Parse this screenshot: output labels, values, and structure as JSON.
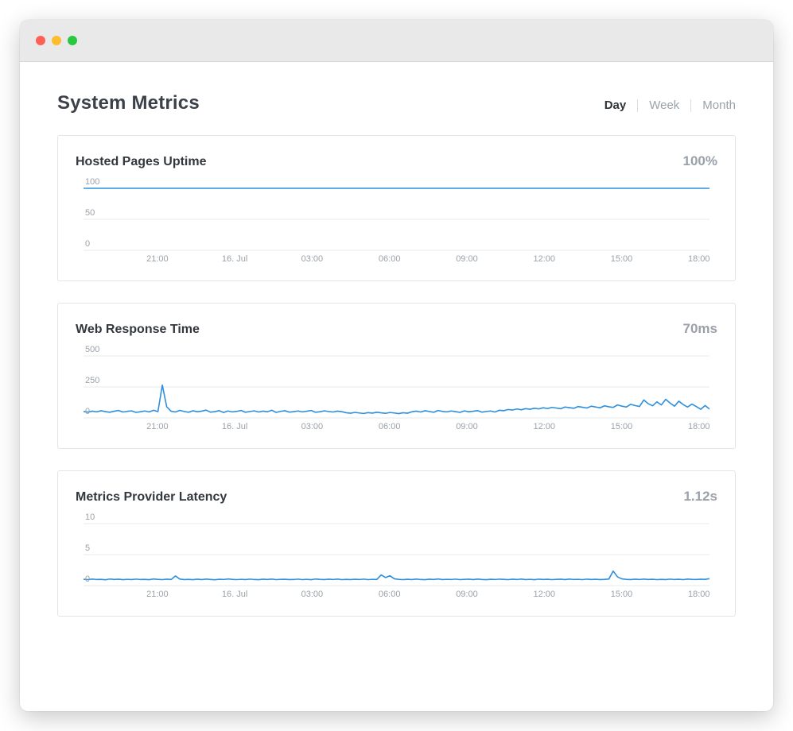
{
  "colors": {
    "line_blue": "#2d8fdd",
    "traffic_red": "#ff5f57",
    "traffic_yellow": "#febc2e",
    "traffic_green": "#28c841"
  },
  "header": {
    "title": "System Metrics",
    "tabs": [
      "Day",
      "Week",
      "Month"
    ],
    "active_tab": "Day"
  },
  "chart_data": [
    {
      "type": "line",
      "title": "Hosted Pages Uptime",
      "current_value": "100%",
      "ylim": [
        0,
        100
      ],
      "yticks": [
        100,
        50,
        0
      ],
      "grid": true,
      "legend": "none",
      "x_labels": [
        "21:00",
        "16. Jul",
        "03:00",
        "06:00",
        "09:00",
        "12:00",
        "15:00",
        "18:00"
      ],
      "x_positions_pct": [
        11.8,
        24.16,
        36.52,
        48.88,
        61.24,
        73.6,
        85.96,
        98.32
      ],
      "values": [
        100,
        100,
        100,
        100,
        100,
        100,
        100,
        100,
        100,
        100,
        100,
        100,
        100
      ]
    },
    {
      "type": "line",
      "title": "Web Response Time",
      "current_value": "70ms",
      "ylim": [
        0,
        500
      ],
      "yticks": [
        500,
        250,
        0
      ],
      "grid": true,
      "legend": "none",
      "x_labels": [
        "21:00",
        "16. Jul",
        "03:00",
        "06:00",
        "09:00",
        "12:00",
        "15:00",
        "18:00"
      ],
      "x_positions_pct": [
        11.8,
        24.16,
        36.52,
        48.88,
        61.24,
        73.6,
        85.96,
        98.32
      ],
      "values": [
        52,
        47,
        55,
        49,
        58,
        51,
        46,
        54,
        60,
        48,
        53,
        57,
        45,
        50,
        56,
        49,
        62,
        51,
        265,
        90,
        54,
        48,
        61,
        52,
        46,
        58,
        50,
        55,
        63,
        47,
        51,
        59,
        44,
        56,
        49,
        53,
        60,
        46,
        52,
        57,
        48,
        55,
        50,
        62,
        45,
        53,
        58,
        47,
        51,
        56,
        49,
        54,
        60,
        46,
        50,
        57,
        52,
        48,
        55,
        51,
        42,
        38,
        45,
        40,
        36,
        43,
        39,
        46,
        41,
        37,
        44,
        40,
        35,
        42,
        38,
        50,
        55,
        48,
        58,
        52,
        46,
        60,
        53,
        49,
        56,
        51,
        45,
        57,
        50,
        54,
        59,
        47,
        52,
        56,
        48,
        62,
        58,
        68,
        64,
        72,
        66,
        75,
        70,
        78,
        73,
        82,
        76,
        85,
        80,
        74,
        88,
        83,
        78,
        92,
        86,
        80,
        95,
        88,
        82,
        98,
        90,
        85,
        105,
        95,
        88,
        110,
        100,
        92,
        145,
        115,
        98,
        130,
        105,
        150,
        120,
        95,
        135,
        108,
        88,
        112,
        92,
        70,
        100,
        72
      ]
    },
    {
      "type": "line",
      "title": "Metrics Provider Latency",
      "current_value": "1.12s",
      "ylim": [
        0,
        10
      ],
      "yticks": [
        10,
        5,
        0
      ],
      "grid": true,
      "legend": "none",
      "x_labels": [
        "21:00",
        "16. Jul",
        "03:00",
        "06:00",
        "09:00",
        "12:00",
        "15:00",
        "18:00"
      ],
      "x_positions_pct": [
        11.8,
        24.16,
        36.52,
        48.88,
        61.24,
        73.6,
        85.96,
        98.32
      ],
      "values": [
        1.02,
        0.96,
        1.05,
        0.98,
        1.0,
        0.94,
        1.06,
        0.99,
        1.03,
        0.95,
        1.01,
        0.97,
        1.04,
        0.98,
        1.0,
        0.95,
        1.07,
        1.0,
        0.96,
        1.03,
        0.98,
        1.55,
        1.05,
        0.97,
        1.0,
        0.95,
        1.03,
        0.97,
        1.05,
        0.99,
        0.94,
        1.02,
        0.98,
        1.06,
        1.0,
        0.96,
        1.01,
        0.97,
        1.04,
        0.98,
        0.95,
        1.03,
        0.99,
        1.05,
        0.96,
        1.0,
        1.02,
        0.97,
        0.98,
        1.04,
        0.96,
        1.01,
        0.95,
        1.06,
        1.0,
        0.97,
        1.03,
        0.98,
        1.05,
        0.96,
        1.0,
        0.97,
        1.02,
        0.98,
        1.04,
        0.96,
        1.01,
        0.99,
        1.72,
        1.3,
        1.58,
        1.1,
        1.0,
        0.96,
        1.02,
        0.97,
        1.05,
        0.98,
        0.95,
        1.03,
        0.99,
        1.06,
        0.97,
        1.01,
        0.98,
        1.04,
        0.96,
        1.0,
        1.03,
        0.97,
        1.05,
        0.99,
        0.95,
        1.02,
        0.98,
        1.04,
        1.0,
        0.96,
        1.03,
        0.98,
        1.05,
        0.97,
        1.01,
        0.95,
        1.04,
        0.99,
        1.02,
        0.96,
        1.0,
        1.03,
        0.97,
        1.05,
        0.98,
        1.01,
        0.96,
        1.04,
        0.99,
        1.02,
        0.97,
        1.0,
        1.05,
        2.35,
        1.4,
        1.08,
        1.0,
        0.97,
        1.03,
        0.98,
        1.05,
        0.99,
        1.02,
        0.96,
        1.0,
        0.97,
        1.04,
        0.98,
        1.02,
        0.96,
        1.05,
        1.0,
        0.98,
        1.03,
        1.0,
        1.12
      ]
    }
  ]
}
